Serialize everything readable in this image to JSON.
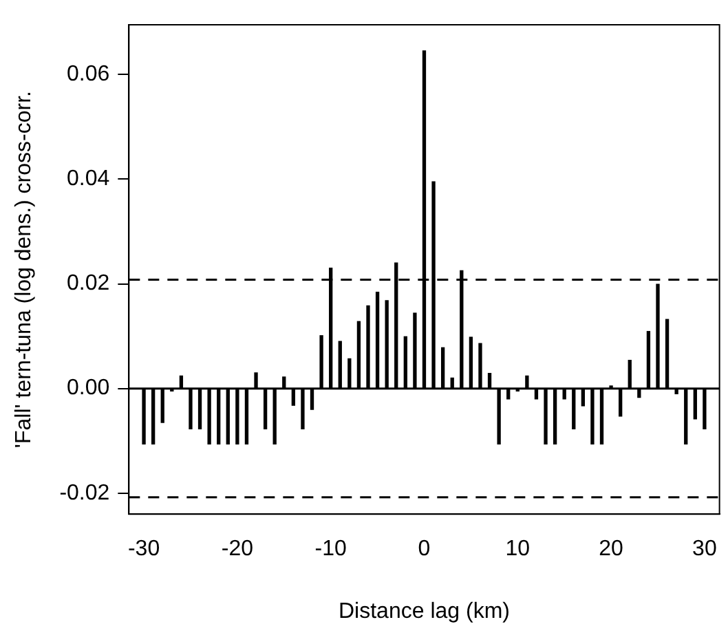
{
  "chart_data": {
    "type": "bar",
    "xlabel": "Distance lag (km)",
    "ylabel": "'Fall' tern-tuna (log dens.) cross-corr.",
    "x": [
      -30,
      -29,
      -28,
      -27,
      -26,
      -25,
      -24,
      -23,
      -22,
      -21,
      -20,
      -19,
      -18,
      -17,
      -16,
      -15,
      -14,
      -13,
      -12,
      -11,
      -10,
      -9,
      -8,
      -7,
      -6,
      -5,
      -4,
      -3,
      -2,
      -1,
      0,
      1,
      2,
      3,
      4,
      5,
      6,
      7,
      8,
      9,
      10,
      11,
      12,
      13,
      14,
      15,
      16,
      17,
      18,
      19,
      20,
      21,
      22,
      23,
      24,
      25,
      26,
      27,
      28,
      29,
      30
    ],
    "series": [
      {
        "color": "#000000",
        "values": [
          -0.0106,
          -0.0106,
          -0.0065,
          -0.0005,
          0.0024,
          -0.0077,
          -0.0077,
          -0.0106,
          -0.0106,
          -0.0106,
          -0.0106,
          -0.0106,
          0.003,
          -0.0077,
          -0.0106,
          0.0022,
          -0.0032,
          -0.0077,
          -0.004,
          0.0101,
          0.023,
          0.009,
          0.0057,
          0.0128,
          0.0158,
          0.0184,
          0.0168,
          0.024,
          0.0099,
          0.0144,
          0.0645,
          0.0395,
          0.0078,
          0.002,
          0.0225,
          0.0098,
          0.0086,
          0.0029,
          -0.0106,
          -0.002,
          -0.0005,
          0.0024,
          -0.002,
          -0.0106,
          -0.0106,
          -0.002,
          -0.0077,
          -0.0033,
          -0.0106,
          -0.0106,
          0.0005,
          -0.0053,
          0.0054,
          -0.0017,
          0.0109,
          0.0199,
          0.0132,
          -0.001,
          -0.0106,
          -0.0058,
          -0.0077
        ]
      }
    ],
    "xlim": [
      -31.6,
      31.6
    ],
    "xticks": [
      -30,
      -20,
      -10,
      0,
      10,
      20,
      30
    ],
    "ylim": [
      -0.024,
      0.0695
    ],
    "yticks": [
      {
        "value": -0.02,
        "label": "-0.02"
      },
      {
        "value": 0,
        "label": "0.00"
      },
      {
        "value": 0.02,
        "label": "0.02"
      },
      {
        "value": 0.04,
        "label": "0.04"
      },
      {
        "value": 0.06,
        "label": "0.06"
      }
    ],
    "ref_lines": [
      {
        "axis": "y",
        "value": 0,
        "line_style": "solid",
        "color": "#000000"
      },
      {
        "axis": "y",
        "value": 0.0208,
        "line_style": "dashed",
        "color": "#000000"
      },
      {
        "axis": "y",
        "value": -0.0208,
        "line_style": "dashed",
        "color": "#000000"
      }
    ],
    "grid": false,
    "legend": false
  }
}
